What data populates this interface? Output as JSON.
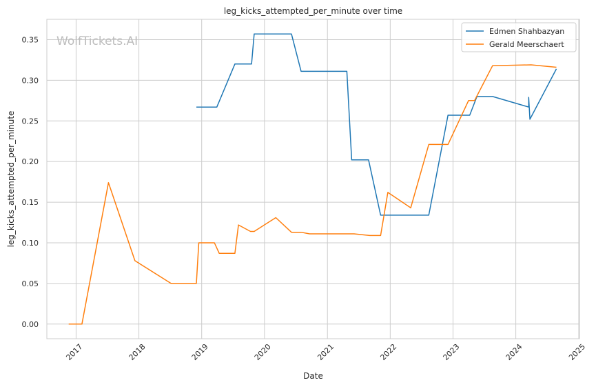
{
  "chart_data": {
    "type": "line",
    "title": "leg_kicks_attempted_per_minute over time",
    "xlabel": "Date",
    "ylabel": "leg_kicks_attempted_per_minute",
    "watermark": "WolfTickets.AI",
    "xlim": [
      "2016-07-15",
      "2025-01-05"
    ],
    "ylim": [
      -0.018,
      0.375
    ],
    "x_ticks": [
      "2017",
      "2018",
      "2019",
      "2020",
      "2021",
      "2022",
      "2023",
      "2024",
      "2025"
    ],
    "y_ticks": [
      "0.00",
      "0.05",
      "0.10",
      "0.15",
      "0.20",
      "0.25",
      "0.30",
      "0.35"
    ],
    "grid": true,
    "legend_position": "top-right",
    "series": [
      {
        "name": "Edmen Shahbazyan",
        "color": "#1f77b4",
        "x": [
          "2018-12-01",
          "2019-03-30",
          "2019-07-13",
          "2019-10-18",
          "2019-11-02",
          "2020-06-06",
          "2020-08-01",
          "2021-04-24",
          "2021-05-22",
          "2021-08-28",
          "2021-11-06",
          "2022-08-13",
          "2022-12-03",
          "2023-04-08",
          "2023-05-20",
          "2023-08-19",
          "2024-03-16",
          "2024-03-16",
          "2024-03-23",
          "2024-08-24"
        ],
        "values": [
          0.267,
          0.267,
          0.32,
          0.32,
          0.357,
          0.357,
          0.311,
          0.311,
          0.202,
          0.202,
          0.134,
          0.134,
          0.257,
          0.257,
          0.28,
          0.28,
          0.267,
          0.279,
          0.252,
          0.314
        ]
      },
      {
        "name": "Gerald Meerschaert",
        "color": "#ff7f0e",
        "x": [
          "2016-11-19",
          "2017-02-04",
          "2017-07-08",
          "2017-12-09",
          "2018-07-07",
          "2018-12-01",
          "2018-12-15",
          "2019-03-16",
          "2019-04-13",
          "2019-07-13",
          "2019-08-03",
          "2019-10-12",
          "2019-11-02",
          "2020-03-07",
          "2020-06-06",
          "2020-08-01",
          "2020-09-19",
          "2021-06-05",
          "2021-09-04",
          "2021-11-06",
          "2021-12-18",
          "2022-04-30",
          "2022-08-13",
          "2022-12-03",
          "2023-04-01",
          "2023-05-06",
          "2023-08-19",
          "2024-03-30",
          "2024-08-24"
        ],
        "values": [
          0.0,
          0.0,
          0.174,
          0.078,
          0.05,
          0.05,
          0.1,
          0.1,
          0.087,
          0.087,
          0.122,
          0.114,
          0.114,
          0.131,
          0.113,
          0.113,
          0.111,
          0.111,
          0.109,
          0.109,
          0.162,
          0.143,
          0.221,
          0.221,
          0.275,
          0.275,
          0.318,
          0.319,
          0.316
        ]
      }
    ]
  }
}
